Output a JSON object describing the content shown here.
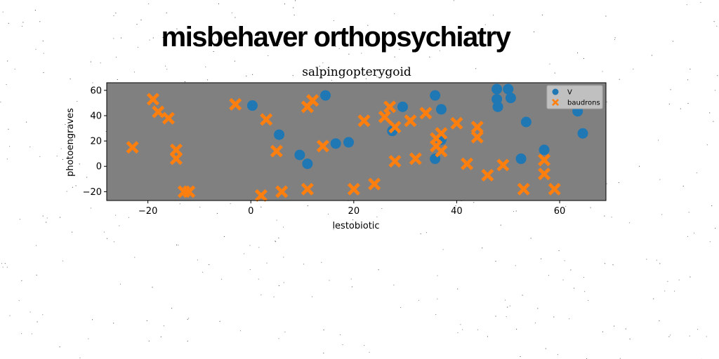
{
  "page_title": "misbehaver orthopsychiatry",
  "colors": {
    "plot_background": "#808080",
    "series_blue": "#1f77b4",
    "series_orange": "#ff7f0e",
    "legend_background": "#c0c0c0"
  },
  "chart_data": {
    "type": "scatter",
    "title": "salpingopterygoid",
    "xlabel": "lestobiotic",
    "ylabel": "photoengraves",
    "xlim": [
      -28,
      69
    ],
    "ylim": [
      -27,
      66
    ],
    "xticks": [
      -20,
      0,
      20,
      40,
      60
    ],
    "yticks": [
      -20,
      0,
      20,
      40,
      60
    ],
    "grid": false,
    "legend_position": "upper right",
    "series": [
      {
        "name": "V",
        "marker": "circle",
        "color": "#1f77b4",
        "points": [
          [
            0.3,
            48
          ],
          [
            5.5,
            25
          ],
          [
            9.5,
            9
          ],
          [
            11,
            2
          ],
          [
            14.5,
            56
          ],
          [
            16.5,
            18
          ],
          [
            19,
            19
          ],
          [
            27.5,
            28
          ],
          [
            29.5,
            47
          ],
          [
            35.8,
            56
          ],
          [
            35.8,
            6
          ],
          [
            37,
            45
          ],
          [
            37,
            21
          ],
          [
            47.8,
            61
          ],
          [
            47.8,
            53
          ],
          [
            48,
            47
          ],
          [
            50,
            61
          ],
          [
            50.5,
            54
          ],
          [
            52.5,
            6
          ],
          [
            53.5,
            35
          ],
          [
            57,
            13
          ],
          [
            63.5,
            43.5
          ],
          [
            64.5,
            26
          ]
        ]
      },
      {
        "name": "baudrons",
        "marker": "x",
        "color": "#ff7f0e",
        "points": [
          [
            -23,
            15
          ],
          [
            -19,
            53
          ],
          [
            -18,
            43
          ],
          [
            -16,
            38
          ],
          [
            -14.5,
            13
          ],
          [
            -14.5,
            6
          ],
          [
            -13,
            -20
          ],
          [
            -12,
            -20
          ],
          [
            -3,
            49
          ],
          [
            2,
            -23
          ],
          [
            3,
            37
          ],
          [
            5,
            12
          ],
          [
            6,
            -20
          ],
          [
            11,
            47
          ],
          [
            11,
            -18
          ],
          [
            12,
            52
          ],
          [
            14,
            16
          ],
          [
            20,
            -18
          ],
          [
            22,
            36
          ],
          [
            24,
            -14
          ],
          [
            26,
            39
          ],
          [
            27,
            47
          ],
          [
            28,
            31
          ],
          [
            28,
            4
          ],
          [
            31,
            36
          ],
          [
            32,
            6
          ],
          [
            34,
            42
          ],
          [
            36,
            22
          ],
          [
            36,
            16
          ],
          [
            37,
            26
          ],
          [
            37,
            12
          ],
          [
            40,
            34
          ],
          [
            42,
            2
          ],
          [
            44,
            31
          ],
          [
            44,
            23
          ],
          [
            46,
            -7
          ],
          [
            49,
            1
          ],
          [
            53,
            -18
          ],
          [
            57,
            5
          ],
          [
            57,
            -6
          ],
          [
            59,
            -18
          ]
        ]
      }
    ]
  }
}
